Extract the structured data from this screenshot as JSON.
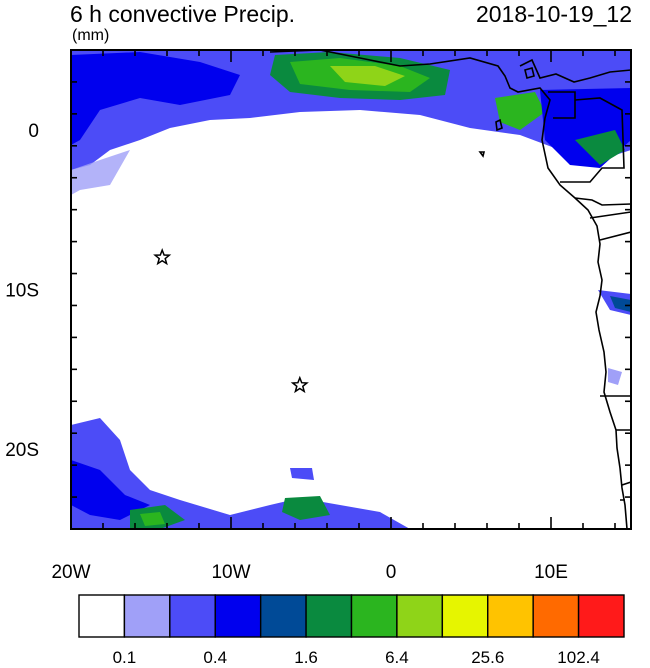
{
  "header": {
    "title": "6 h convective Precip.",
    "units": "(mm)",
    "datetime": "2018-10-19_12"
  },
  "map": {
    "lon_range": [
      -20,
      15
    ],
    "lat_range": [
      -25,
      5
    ],
    "lon_ticks": [
      {
        "value": -20,
        "label": "20W"
      },
      {
        "value": -10,
        "label": "10W"
      },
      {
        "value": 0,
        "label": "0"
      },
      {
        "value": 10,
        "label": "10E"
      }
    ],
    "lat_ticks": [
      {
        "value": 0,
        "label": "0"
      },
      {
        "value": -10,
        "label": "10S"
      },
      {
        "value": -20,
        "label": "20S"
      }
    ],
    "markers": [
      {
        "name": "star-marker",
        "lon": -14.3,
        "lat": -8.0
      },
      {
        "name": "star-marker",
        "lon": -5.7,
        "lat": -16.0
      }
    ]
  },
  "colorbar": {
    "colors": [
      "#ffffff",
      "#a0a0f8",
      "#4c4cf7",
      "#0000ee",
      "#004a97",
      "#0a8a3f",
      "#2bb51f",
      "#8fd418",
      "#e6f500",
      "#ffc300",
      "#ff6a00",
      "#ff1a1a"
    ],
    "labels": [
      {
        "text": "0.1",
        "index": 1
      },
      {
        "text": "0.4",
        "index": 3
      },
      {
        "text": "1.6",
        "index": 5
      },
      {
        "text": "6.4",
        "index": 7
      },
      {
        "text": "25.6",
        "index": 9
      },
      {
        "text": "102.4",
        "index": 11
      }
    ]
  }
}
